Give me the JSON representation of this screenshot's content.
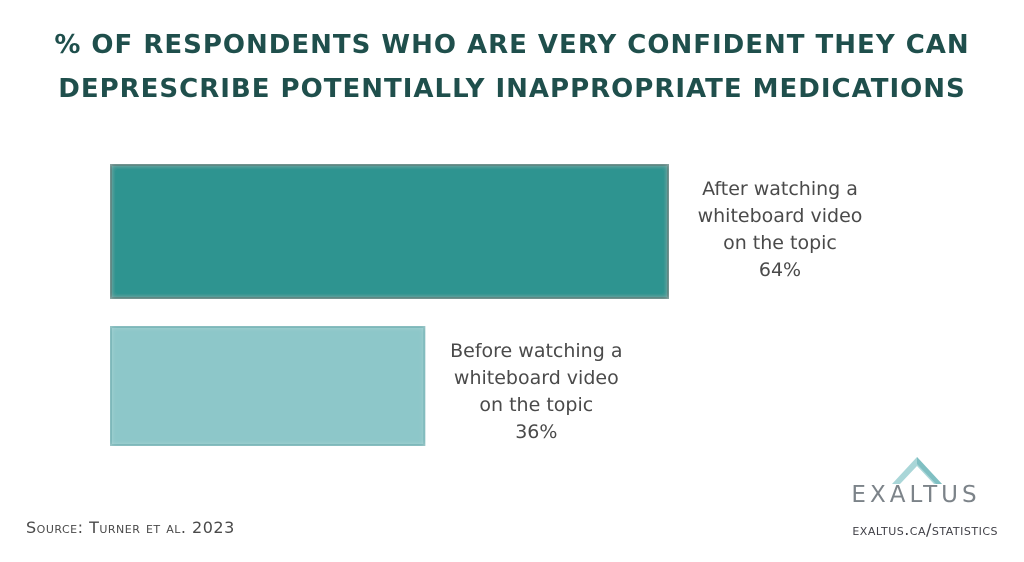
{
  "title_line1": "% OF RESPONDENTS WHO ARE VERY CONFIDENT THEY CAN",
  "title_line2": "DEPRESCRIBE POTENTIALLY INAPPROPRIATE MEDICATIONS",
  "source": "Source: Turner et al. 2023",
  "website": "exaltus.ca/statistics",
  "logo_text": "EXALTUS",
  "colors": {
    "after_bar": "#2e9490",
    "before_bar": "#8dc7c9",
    "title": "#1f4f4c"
  },
  "chart_data": {
    "type": "bar",
    "orientation": "horizontal",
    "title": "% OF RESPONDENTS WHO ARE VERY CONFIDENT THEY CAN DEPRESCRIBE POTENTIALLY INAPPROPRIATE MEDICATIONS",
    "categories": [
      "After watching a whiteboard video on the topic",
      "Before watching a whiteboard video on the topic"
    ],
    "label_lines": [
      [
        "After watching a",
        "whiteboard video",
        "on the topic"
      ],
      [
        "Before watching a",
        "whiteboard video",
        "on the topic"
      ]
    ],
    "values": [
      64,
      36
    ],
    "value_labels": [
      "64%",
      "36%"
    ],
    "unit": "%",
    "xlim": [
      0,
      100
    ],
    "grid": false,
    "legend": "none"
  }
}
